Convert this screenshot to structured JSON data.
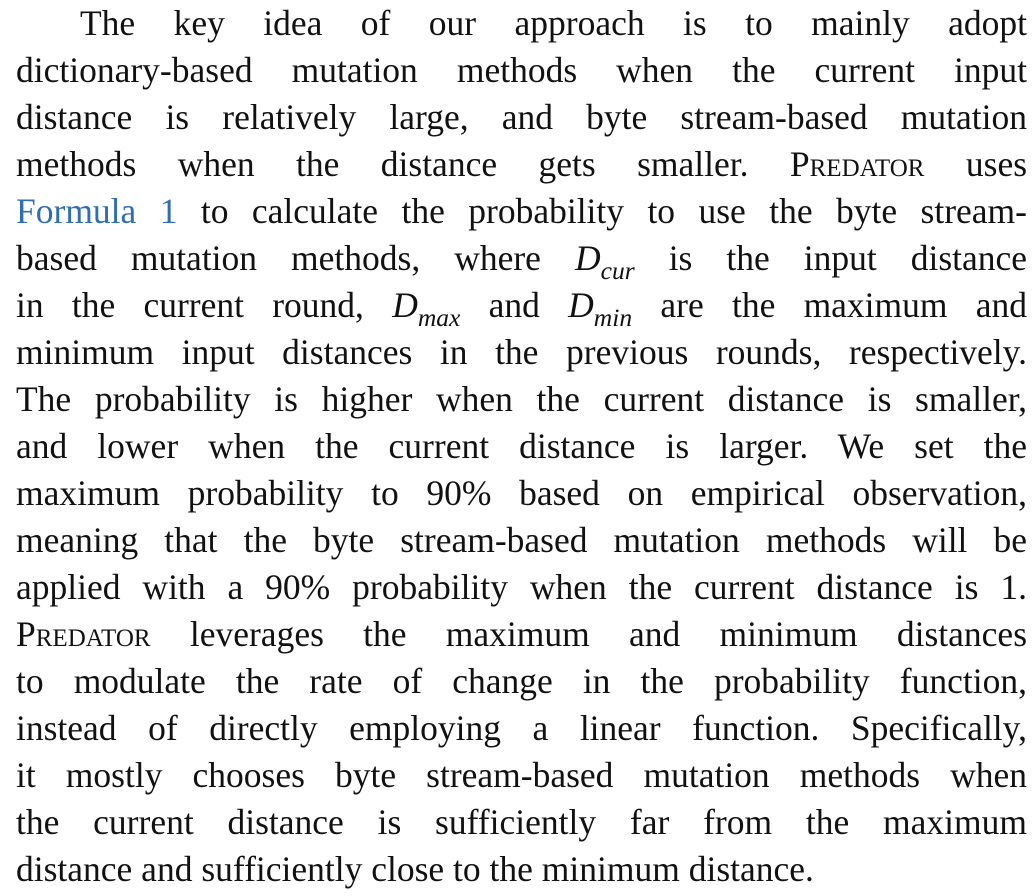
{
  "paragraph": {
    "l1": "The key idea of our approach is to mainly adopt",
    "l2": "dictionary-based mutation methods when the current input",
    "l3": "distance is relatively large, and byte stream-based mutation",
    "l4": "methods when the distance gets smaller.",
    "predator1": "Predator",
    "l4b": "uses",
    "formula_link": "Formula 1",
    "l5": "to calculate the probability to use the byte stream-",
    "l6a": "based mutation methods, where",
    "dcur_base": "D",
    "dcur_sub": "cur",
    "l6b": "is the input distance",
    "l7a": "in the current round,",
    "dmax_base": "D",
    "dmax_sub": "max",
    "l7b": "and",
    "dmin_base": "D",
    "dmin_sub": "min",
    "l7c": "are the maximum and",
    "l8": "minimum input distances in the previous rounds, respectively.",
    "l9": "The probability is higher when the current distance is smaller,",
    "l10": "and lower when the current distance is larger. We set the",
    "l11": "maximum probability to 90% based on empirical observation,",
    "l12": "meaning that the byte stream-based mutation methods will be",
    "l13": "applied with a 90% probability when the current distance is 1.",
    "predator2": "Predator",
    "l14": "leverages the maximum and minimum distances",
    "l15": "to modulate the rate of change in the probability function,",
    "l16": "instead of directly employing a linear function. Specifically,",
    "l17": "it mostly chooses byte stream-based mutation methods when",
    "l18": "the current distance is sufficiently far from the maximum",
    "l19": "distance and sufficiently close to the minimum distance."
  },
  "colors": {
    "text": "#111111",
    "link": "#2f6db5",
    "background": "#ffffff"
  }
}
